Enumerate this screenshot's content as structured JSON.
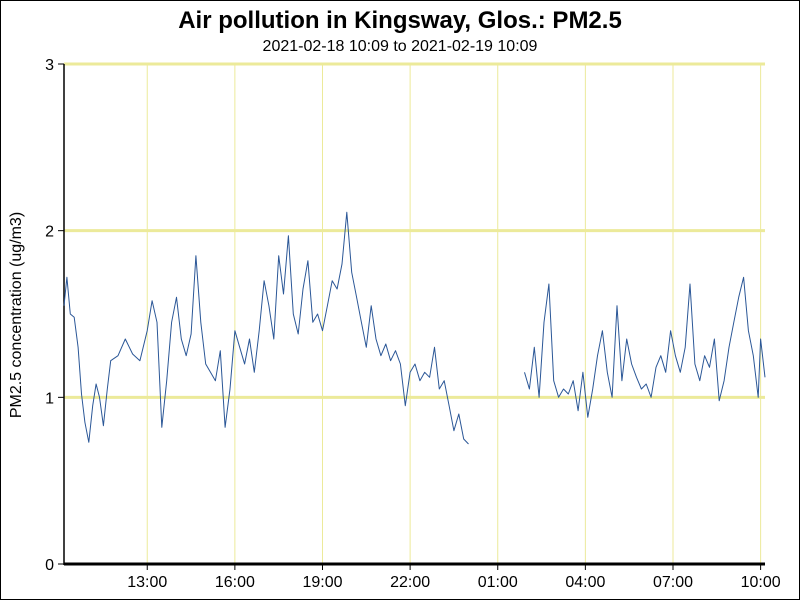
{
  "chart_data": {
    "type": "line",
    "title": "Air pollution in Kingsway, Glos.: PM2.5",
    "subtitle": "2021-02-18 10:09 to 2021-02-19 10:09",
    "ylabel": "PM2.5 concentration (ug/m3)",
    "xlabel": "",
    "ylim": [
      0,
      3
    ],
    "y_ticks": [
      0,
      1,
      2,
      3
    ],
    "x_range": [
      "2021-02-18 10:09",
      "2021-02-19 10:09"
    ],
    "x_ticks": [
      {
        "time": "2021-02-18 13:00",
        "label": "13:00"
      },
      {
        "time": "2021-02-18 16:00",
        "label": "16:00"
      },
      {
        "time": "2021-02-18 19:00",
        "label": "19:00"
      },
      {
        "time": "2021-02-18 22:00",
        "label": "22:00"
      },
      {
        "time": "2021-02-19 01:00",
        "label": "01:00"
      },
      {
        "time": "2021-02-19 04:00",
        "label": "04:00"
      },
      {
        "time": "2021-02-19 07:00",
        "label": "07:00"
      },
      {
        "time": "2021-02-19 10:00",
        "label": "10:00"
      }
    ],
    "grid": {
      "horizontal": true,
      "vertical": true,
      "color": "#ecea9a"
    },
    "series": [
      {
        "color": "#2b5797",
        "segments": [
          [
            [
              "2021-02-18 10:09",
              1.55
            ],
            [
              "2021-02-18 10:15",
              1.72
            ],
            [
              "2021-02-18 10:22",
              1.5
            ],
            [
              "2021-02-18 10:30",
              1.48
            ],
            [
              "2021-02-18 10:38",
              1.3
            ],
            [
              "2021-02-18 10:45",
              1.02
            ],
            [
              "2021-02-18 10:52",
              0.85
            ],
            [
              "2021-02-18 11:00",
              0.73
            ],
            [
              "2021-02-18 11:08",
              0.95
            ],
            [
              "2021-02-18 11:15",
              1.08
            ],
            [
              "2021-02-18 11:22",
              1.0
            ],
            [
              "2021-02-18 11:30",
              0.83
            ],
            [
              "2021-02-18 11:38",
              1.05
            ],
            [
              "2021-02-18 11:45",
              1.22
            ],
            [
              "2021-02-18 12:00",
              1.25
            ],
            [
              "2021-02-18 12:15",
              1.35
            ],
            [
              "2021-02-18 12:30",
              1.26
            ],
            [
              "2021-02-18 12:45",
              1.22
            ],
            [
              "2021-02-18 13:00",
              1.4
            ],
            [
              "2021-02-18 13:10",
              1.58
            ],
            [
              "2021-02-18 13:20",
              1.45
            ],
            [
              "2021-02-18 13:30",
              0.82
            ],
            [
              "2021-02-18 13:40",
              1.1
            ],
            [
              "2021-02-18 13:50",
              1.45
            ],
            [
              "2021-02-18 14:00",
              1.6
            ],
            [
              "2021-02-18 14:10",
              1.35
            ],
            [
              "2021-02-18 14:20",
              1.25
            ],
            [
              "2021-02-18 14:30",
              1.38
            ],
            [
              "2021-02-18 14:40",
              1.85
            ],
            [
              "2021-02-18 14:50",
              1.45
            ],
            [
              "2021-02-18 15:00",
              1.2
            ],
            [
              "2021-02-18 15:10",
              1.15
            ],
            [
              "2021-02-18 15:20",
              1.1
            ],
            [
              "2021-02-18 15:30",
              1.28
            ],
            [
              "2021-02-18 15:40",
              0.82
            ],
            [
              "2021-02-18 15:50",
              1.05
            ],
            [
              "2021-02-18 16:00",
              1.4
            ],
            [
              "2021-02-18 16:10",
              1.3
            ],
            [
              "2021-02-18 16:20",
              1.2
            ],
            [
              "2021-02-18 16:30",
              1.35
            ],
            [
              "2021-02-18 16:40",
              1.15
            ],
            [
              "2021-02-18 16:50",
              1.4
            ],
            [
              "2021-02-18 17:00",
              1.7
            ],
            [
              "2021-02-18 17:10",
              1.55
            ],
            [
              "2021-02-18 17:20",
              1.35
            ],
            [
              "2021-02-18 17:30",
              1.85
            ],
            [
              "2021-02-18 17:40",
              1.62
            ],
            [
              "2021-02-18 17:50",
              1.97
            ],
            [
              "2021-02-18 18:00",
              1.5
            ],
            [
              "2021-02-18 18:10",
              1.38
            ],
            [
              "2021-02-18 18:20",
              1.65
            ],
            [
              "2021-02-18 18:30",
              1.82
            ],
            [
              "2021-02-18 18:40",
              1.45
            ],
            [
              "2021-02-18 18:50",
              1.5
            ],
            [
              "2021-02-18 19:00",
              1.4
            ],
            [
              "2021-02-18 19:10",
              1.55
            ],
            [
              "2021-02-18 19:20",
              1.7
            ],
            [
              "2021-02-18 19:30",
              1.65
            ],
            [
              "2021-02-18 19:40",
              1.8
            ],
            [
              "2021-02-18 19:50",
              2.11
            ],
            [
              "2021-02-18 20:00",
              1.75
            ],
            [
              "2021-02-18 20:10",
              1.6
            ],
            [
              "2021-02-18 20:20",
              1.45
            ],
            [
              "2021-02-18 20:30",
              1.3
            ],
            [
              "2021-02-18 20:40",
              1.55
            ],
            [
              "2021-02-18 20:50",
              1.35
            ],
            [
              "2021-02-18 21:00",
              1.25
            ],
            [
              "2021-02-18 21:10",
              1.32
            ],
            [
              "2021-02-18 21:20",
              1.22
            ],
            [
              "2021-02-18 21:30",
              1.28
            ],
            [
              "2021-02-18 21:40",
              1.2
            ],
            [
              "2021-02-18 21:50",
              0.95
            ],
            [
              "2021-02-18 22:00",
              1.15
            ],
            [
              "2021-02-18 22:10",
              1.2
            ],
            [
              "2021-02-18 22:20",
              1.1
            ],
            [
              "2021-02-18 22:30",
              1.15
            ],
            [
              "2021-02-18 22:40",
              1.12
            ],
            [
              "2021-02-18 22:50",
              1.3
            ],
            [
              "2021-02-18 23:00",
              1.05
            ],
            [
              "2021-02-18 23:10",
              1.1
            ],
            [
              "2021-02-18 23:20",
              0.95
            ],
            [
              "2021-02-18 23:30",
              0.8
            ],
            [
              "2021-02-18 23:40",
              0.9
            ],
            [
              "2021-02-18 23:50",
              0.75
            ],
            [
              "2021-02-19 00:00",
              0.72
            ]
          ],
          [
            [
              "2021-02-19 01:55",
              1.15
            ],
            [
              "2021-02-19 02:05",
              1.05
            ],
            [
              "2021-02-19 02:15",
              1.3
            ],
            [
              "2021-02-19 02:25",
              1.0
            ],
            [
              "2021-02-19 02:35",
              1.45
            ],
            [
              "2021-02-19 02:45",
              1.68
            ],
            [
              "2021-02-19 02:55",
              1.1
            ],
            [
              "2021-02-19 03:05",
              1.0
            ],
            [
              "2021-02-19 03:15",
              1.05
            ],
            [
              "2021-02-19 03:25",
              1.02
            ],
            [
              "2021-02-19 03:35",
              1.1
            ],
            [
              "2021-02-19 03:45",
              0.92
            ],
            [
              "2021-02-19 03:55",
              1.15
            ],
            [
              "2021-02-19 04:05",
              0.88
            ],
            [
              "2021-02-19 04:15",
              1.05
            ],
            [
              "2021-02-19 04:25",
              1.25
            ],
            [
              "2021-02-19 04:35",
              1.4
            ],
            [
              "2021-02-19 04:45",
              1.15
            ],
            [
              "2021-02-19 04:55",
              1.0
            ],
            [
              "2021-02-19 05:05",
              1.55
            ],
            [
              "2021-02-19 05:15",
              1.1
            ],
            [
              "2021-02-19 05:25",
              1.35
            ],
            [
              "2021-02-19 05:35",
              1.2
            ],
            [
              "2021-02-19 05:45",
              1.12
            ],
            [
              "2021-02-19 05:55",
              1.05
            ],
            [
              "2021-02-19 06:05",
              1.08
            ],
            [
              "2021-02-19 06:15",
              1.0
            ],
            [
              "2021-02-19 06:25",
              1.18
            ],
            [
              "2021-02-19 06:35",
              1.25
            ],
            [
              "2021-02-19 06:45",
              1.15
            ],
            [
              "2021-02-19 06:55",
              1.4
            ],
            [
              "2021-02-19 07:05",
              1.25
            ],
            [
              "2021-02-19 07:15",
              1.15
            ],
            [
              "2021-02-19 07:25",
              1.3
            ],
            [
              "2021-02-19 07:35",
              1.68
            ],
            [
              "2021-02-19 07:45",
              1.2
            ],
            [
              "2021-02-19 07:55",
              1.1
            ],
            [
              "2021-02-19 08:05",
              1.25
            ],
            [
              "2021-02-19 08:15",
              1.18
            ],
            [
              "2021-02-19 08:25",
              1.35
            ],
            [
              "2021-02-19 08:35",
              0.98
            ],
            [
              "2021-02-19 08:45",
              1.1
            ],
            [
              "2021-02-19 08:55",
              1.3
            ],
            [
              "2021-02-19 09:05",
              1.45
            ],
            [
              "2021-02-19 09:15",
              1.6
            ],
            [
              "2021-02-19 09:25",
              1.72
            ],
            [
              "2021-02-19 09:35",
              1.4
            ],
            [
              "2021-02-19 09:45",
              1.25
            ],
            [
              "2021-02-19 09:55",
              1.0
            ],
            [
              "2021-02-19 10:00",
              1.35
            ],
            [
              "2021-02-19 10:09",
              1.12
            ]
          ]
        ]
      }
    ]
  }
}
